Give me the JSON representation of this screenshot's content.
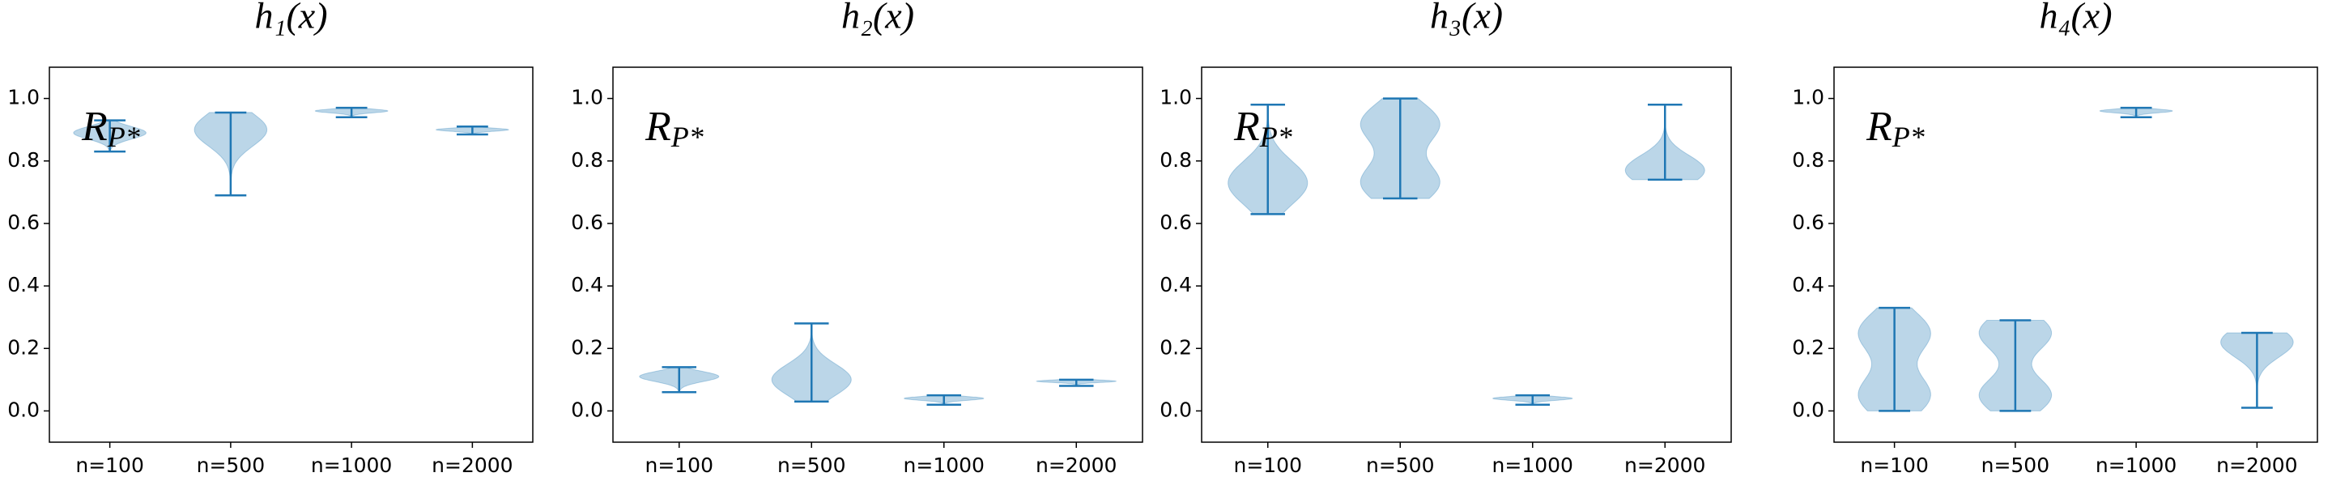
{
  "chart_data": [
    {
      "type": "violin",
      "title": "h₁(x)",
      "annotation": {
        "text": "R",
        "subscript": "P*"
      },
      "categories": [
        "n=100",
        "n=500",
        "n=1000",
        "n=2000"
      ],
      "series": [
        {
          "color": "#1f77b4",
          "mins": [
            0.83,
            0.69,
            0.94,
            0.885
          ],
          "maxs": [
            0.93,
            0.955,
            0.97,
            0.91
          ],
          "modes": [
            [
              0.89
            ],
            [
              0.9
            ],
            [
              0.96
            ],
            [
              0.9
            ]
          ]
        }
      ],
      "ylim": [
        -0.1,
        1.1
      ],
      "yticks": [
        {
          "value": 0,
          "label": "0.0"
        },
        0.2,
        0.4,
        0.6,
        0.8,
        {
          "value": 1,
          "label": "1.0"
        }
      ]
    },
    {
      "type": "violin",
      "title": "h₂(x)",
      "annotation": {
        "text": "R",
        "subscript": "P*"
      },
      "categories": [
        "n=100",
        "n=500",
        "n=1000",
        "n=2000"
      ],
      "series": [
        {
          "color": "#1f77b4",
          "mins": [
            0.06,
            0.03,
            0.02,
            0.08
          ],
          "maxs": [
            0.14,
            0.28,
            0.05,
            0.1
          ],
          "modes": [
            [
              0.11
            ],
            [
              0.1
            ],
            [
              0.04
            ],
            [
              0.095
            ]
          ]
        }
      ],
      "ylim": [
        -0.1,
        1.1
      ],
      "yticks": [
        {
          "value": 0,
          "label": "0.0"
        },
        0.2,
        0.4,
        0.6,
        0.8,
        {
          "value": 1,
          "label": "1.0"
        }
      ]
    },
    {
      "type": "violin",
      "title": "h₃(x)",
      "annotation": {
        "text": "R",
        "subscript": "P*"
      },
      "categories": [
        "n=100",
        "n=500",
        "n=1000",
        "n=2000"
      ],
      "series": [
        {
          "color": "#1f77b4",
          "mins": [
            0.63,
            0.68,
            0.02,
            0.74
          ],
          "maxs": [
            0.98,
            1.0,
            0.05,
            0.98
          ],
          "modes": [
            [
              0.73
            ],
            [
              0.73,
              0.92
            ],
            [
              0.04
            ],
            [
              0.77
            ]
          ]
        }
      ],
      "ylim": [
        -0.1,
        1.1
      ],
      "yticks": [
        {
          "value": 0,
          "label": "0.0"
        },
        0.2,
        0.4,
        0.6,
        0.8,
        {
          "value": 1,
          "label": "1.0"
        }
      ]
    },
    {
      "type": "violin",
      "title": "h₄(x)",
      "annotation": {
        "text": "R",
        "subscript": "P*"
      },
      "categories": [
        "n=100",
        "n=500",
        "n=1000",
        "n=2000"
      ],
      "series": [
        {
          "color": "#1f77b4",
          "mins": [
            0.0,
            0.0,
            0.94,
            0.01
          ],
          "maxs": [
            0.33,
            0.29,
            0.97,
            0.25
          ],
          "modes": [
            [
              0.05,
              0.25
            ],
            [
              0.05,
              0.25
            ],
            [
              0.96
            ],
            [
              0.22
            ]
          ]
        }
      ],
      "ylim": [
        -0.1,
        1.1
      ],
      "yticks": [
        {
          "value": 0,
          "label": "0.0"
        },
        0.2,
        0.4,
        0.6,
        0.8,
        {
          "value": 1,
          "label": "1.0"
        }
      ]
    }
  ]
}
